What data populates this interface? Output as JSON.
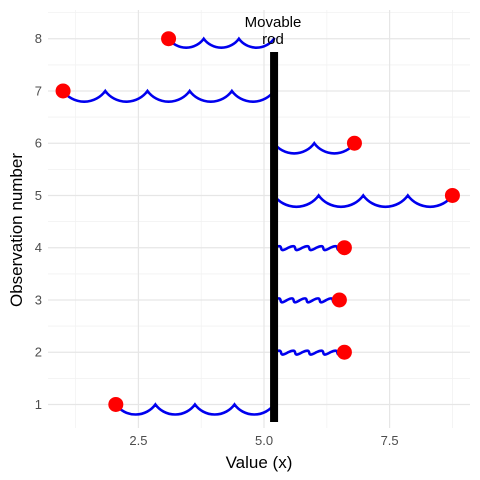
{
  "chart_data": {
    "type": "scatter",
    "title": "",
    "xlabel": "Value (x)",
    "ylabel": "Observation number",
    "xlim": [
      0.7,
      9.1
    ],
    "ylim": [
      0.55,
      8.55
    ],
    "x_ticks": [
      2.5,
      5.0,
      7.5
    ],
    "x_tick_labels": [
      "2.5",
      "5.0",
      "7.5"
    ],
    "y_ticks": [
      1,
      2,
      3,
      4,
      5,
      6,
      7,
      8
    ],
    "y_tick_labels": [
      "1",
      "2",
      "3",
      "4",
      "5",
      "6",
      "7",
      "8"
    ],
    "grid": true,
    "rod": {
      "x": 5.2,
      "label_line1": "Movable",
      "label_line2": "rod"
    },
    "points": [
      {
        "obs": 1,
        "x": 2.05
      },
      {
        "obs": 2,
        "x": 6.6
      },
      {
        "obs": 3,
        "x": 6.5
      },
      {
        "obs": 4,
        "x": 6.6
      },
      {
        "obs": 5,
        "x": 8.75
      },
      {
        "obs": 6,
        "x": 6.8
      },
      {
        "obs": 7,
        "x": 1.0
      },
      {
        "obs": 8,
        "x": 3.1
      }
    ]
  },
  "colors": {
    "point": "#ff0000",
    "spring": "#0000ee",
    "rod": "#000000"
  }
}
